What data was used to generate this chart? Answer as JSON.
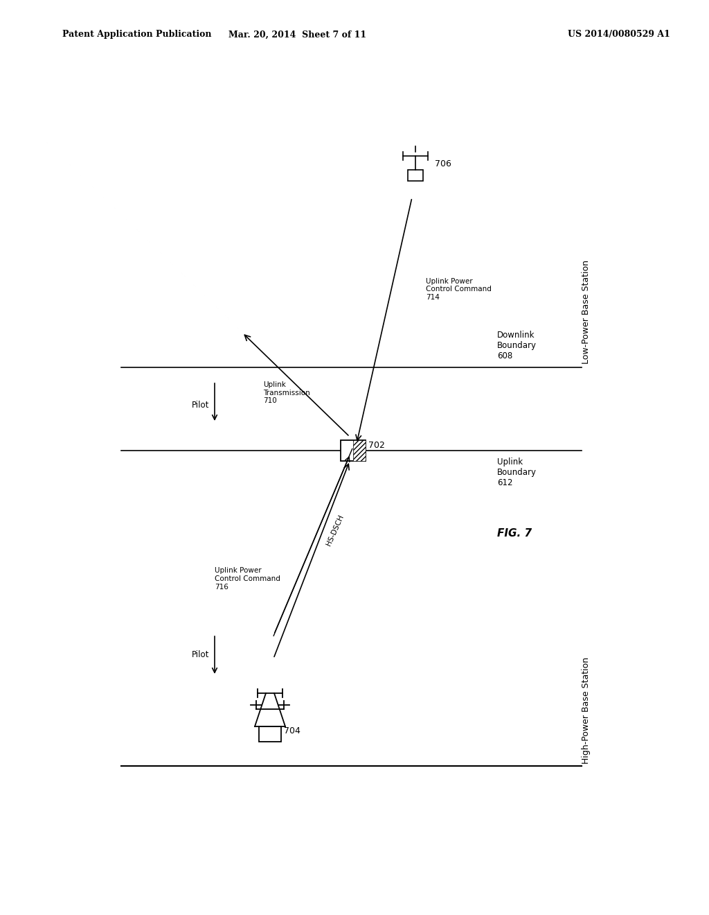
{
  "header_left": "Patent Application Publication",
  "header_center": "Mar. 20, 2014  Sheet 7 of 11",
  "header_right": "US 2014/0080529 A1",
  "fig_label": "FIG. 7",
  "bg_color": "#ffffff",
  "line_color": "#000000",
  "labels": {
    "706": "706",
    "704": "704",
    "702": "702",
    "high_power_bs": "High-Power Base Station",
    "low_power_bs": "Low-Power Base Station",
    "downlink_boundary": "Downlink\nBoundary\n608",
    "uplink_boundary": "Uplink\nBoundary\n612",
    "uplink_transmission": "Uplink\nTransmission\n710",
    "uplink_power_cmd_714": "Uplink Power\nControl Command\n714",
    "uplink_power_cmd_716": "Uplink Power\nControl Command\n716",
    "hs_dsch": "HS-DSCH",
    "pilot_top": "Pilot",
    "pilot_bottom": "Pilot"
  }
}
